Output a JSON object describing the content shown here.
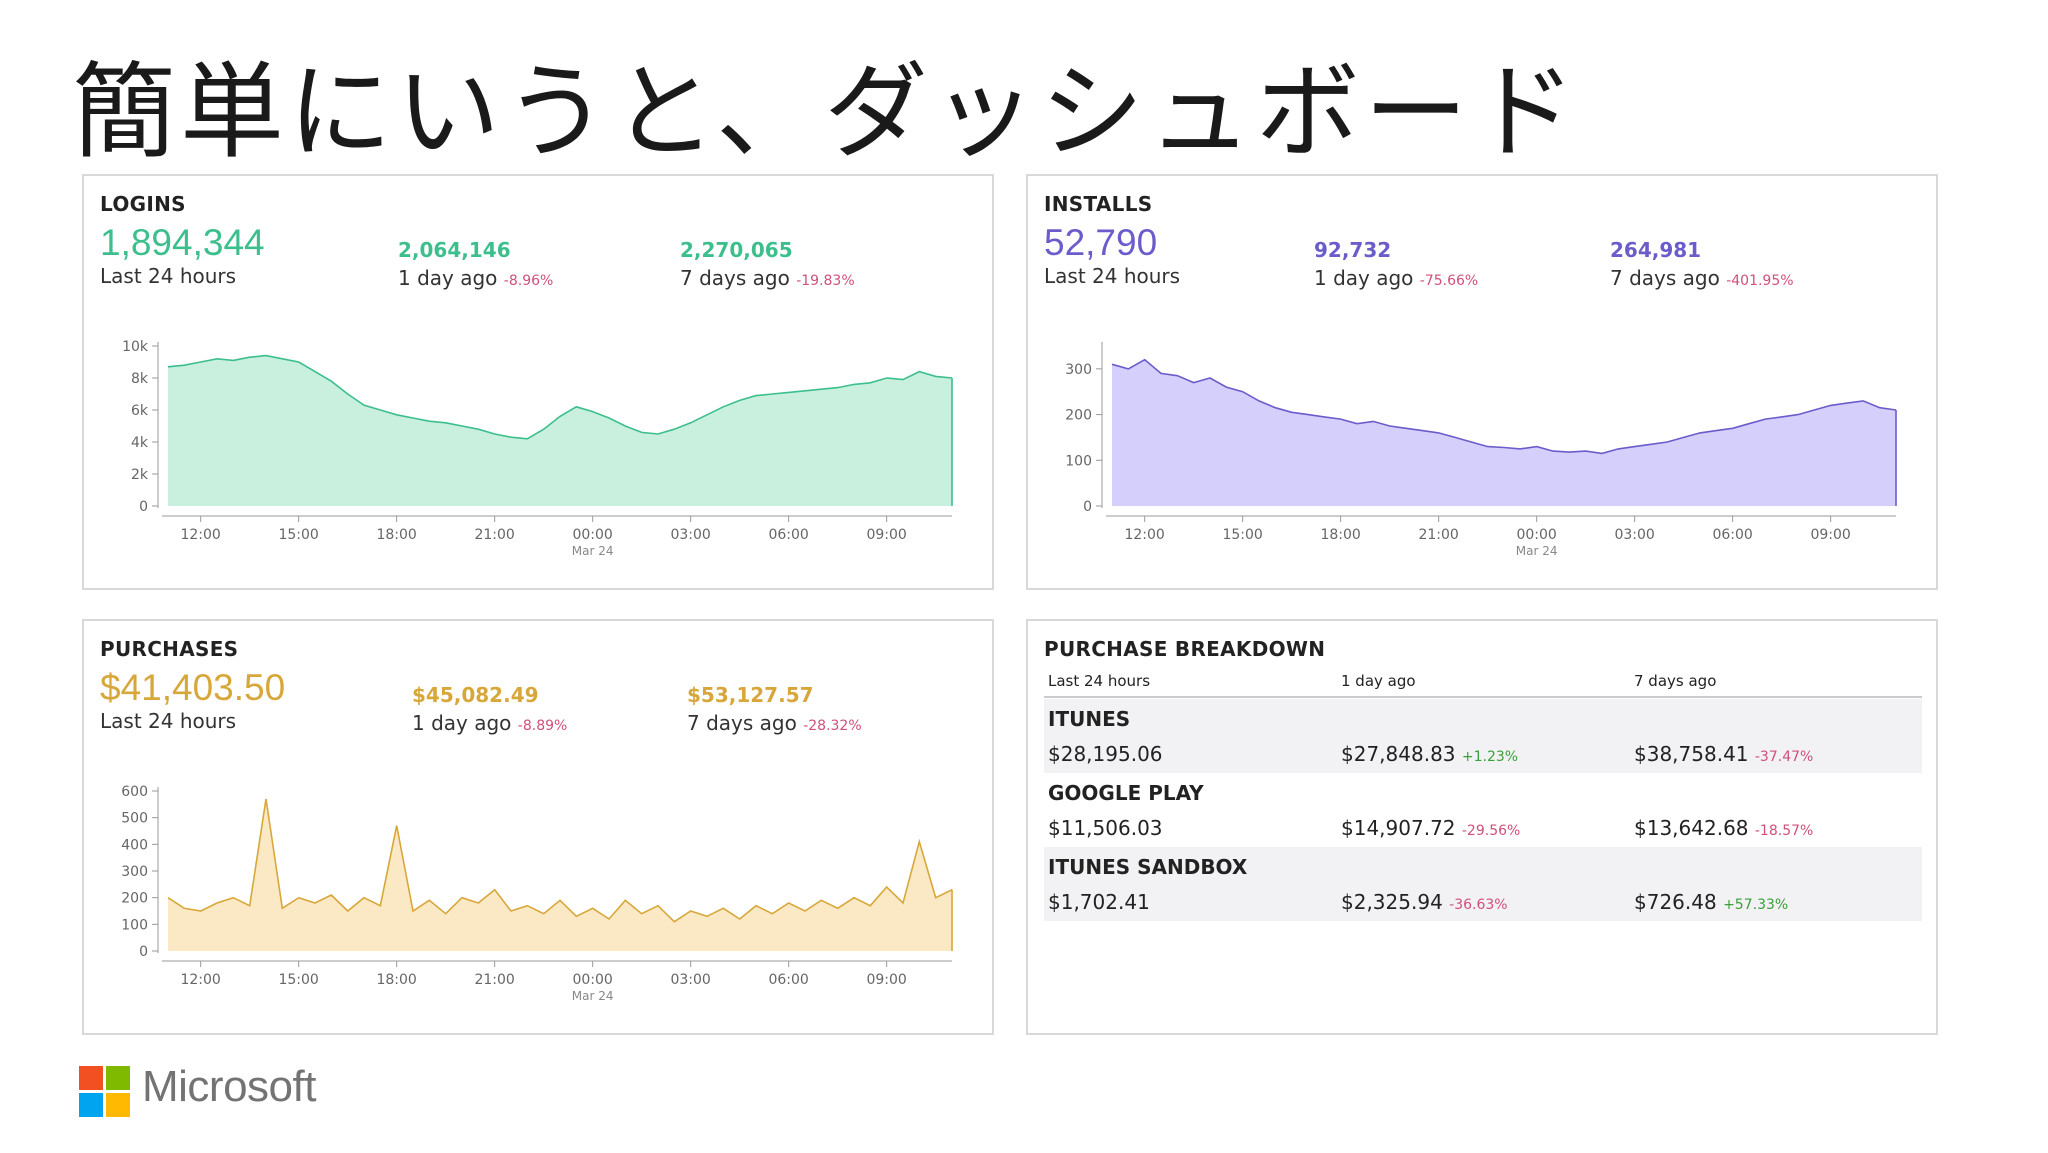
{
  "slide": {
    "title": "簡単にいうと、ダッシュボード"
  },
  "colors": {
    "logins": "#3cbf8c",
    "installs": "#6a5ccb",
    "purchases": "#d8a73a",
    "negative": "#d0507a",
    "positive": "#3aa03a"
  },
  "logins": {
    "title": "LOGINS",
    "value": "1,894,344",
    "value_label": "Last 24 hours",
    "day": {
      "value": "2,064,146",
      "label": "1 day ago",
      "delta": "-8.96%"
    },
    "week": {
      "value": "2,270,065",
      "label": "7 days ago",
      "delta": "-19.83%"
    }
  },
  "installs": {
    "title": "INSTALLS",
    "value": "52,790",
    "value_label": "Last 24 hours",
    "day": {
      "value": "92,732",
      "label": "1 day ago",
      "delta": "-75.66%"
    },
    "week": {
      "value": "264,981",
      "label": "7 days ago",
      "delta": "-401.95%"
    }
  },
  "purchases": {
    "title": "PURCHASES",
    "value": "$41,403.50",
    "value_label": "Last 24 hours",
    "day": {
      "value": "$45,082.49",
      "label": "1 day ago",
      "delta": "-8.89%"
    },
    "week": {
      "value": "$53,127.57",
      "label": "7 days ago",
      "delta": "-28.32%"
    }
  },
  "breakdown": {
    "title": "PURCHASE BREAKDOWN",
    "headers": [
      "Last 24 hours",
      "1 day ago",
      "7 days ago"
    ],
    "rows": [
      {
        "name": "ITUNES",
        "last": "$28,195.06",
        "day": "$27,848.83",
        "day_delta": "+1.23%",
        "week": "$38,758.41",
        "week_delta": "-37.47%"
      },
      {
        "name": "GOOGLE PLAY",
        "last": "$11,506.03",
        "day": "$14,907.72",
        "day_delta": "-29.56%",
        "week": "$13,642.68",
        "week_delta": "-18.57%"
      },
      {
        "name": "ITUNES SANDBOX",
        "last": "$1,702.41",
        "day": "$2,325.94",
        "day_delta": "-36.63%",
        "week": "$726.48",
        "week_delta": "+57.33%"
      }
    ]
  },
  "footer": {
    "brand": "Microsoft"
  },
  "chart_data": [
    {
      "type": "area",
      "name": "logins",
      "x_tick_labels": [
        "12:00",
        "15:00",
        "18:00",
        "21:00",
        "00:00",
        "03:00",
        "06:00",
        "09:00"
      ],
      "x_sub_label": "Mar 24",
      "y_tick_labels": [
        "0",
        "2k",
        "4k",
        "6k",
        "8k",
        "10k"
      ],
      "ylim": [
        0,
        10000
      ],
      "x_hours": [
        11,
        11.5,
        12,
        12.5,
        13,
        13.5,
        14,
        14.5,
        15,
        15.5,
        16,
        16.5,
        17,
        17.5,
        18,
        18.5,
        19,
        19.5,
        20,
        20.5,
        21,
        21.5,
        22,
        22.5,
        23,
        23.5,
        24,
        24.5,
        25,
        25.5,
        26,
        26.5,
        27,
        27.5,
        28,
        28.5,
        29,
        29.5,
        30,
        30.5,
        31,
        31.5,
        32,
        32.5,
        33,
        33.5,
        34,
        34.5,
        35
      ],
      "values": [
        8700,
        8800,
        9000,
        9200,
        9100,
        9300,
        9400,
        9200,
        9000,
        8400,
        7800,
        7000,
        6300,
        6000,
        5700,
        5500,
        5300,
        5200,
        5000,
        4800,
        4500,
        4300,
        4200,
        4800,
        5600,
        6200,
        5900,
        5500,
        5000,
        4600,
        4500,
        4800,
        5200,
        5700,
        6200,
        6600,
        6900,
        7000,
        7100,
        7200,
        7300,
        7400,
        7600,
        7700,
        8000,
        7900,
        8400,
        8100,
        8000
      ]
    },
    {
      "type": "area",
      "name": "installs",
      "x_tick_labels": [
        "12:00",
        "15:00",
        "18:00",
        "21:00",
        "00:00",
        "03:00",
        "06:00",
        "09:00"
      ],
      "x_sub_label": "Mar 24",
      "y_tick_labels": [
        "0",
        "100",
        "200",
        "300"
      ],
      "ylim": [
        0,
        350
      ],
      "x_hours": [
        11,
        11.5,
        12,
        12.5,
        13,
        13.5,
        14,
        14.5,
        15,
        15.5,
        16,
        16.5,
        17,
        17.5,
        18,
        18.5,
        19,
        19.5,
        20,
        20.5,
        21,
        21.5,
        22,
        22.5,
        23,
        23.5,
        24,
        24.5,
        25,
        25.5,
        26,
        26.5,
        27,
        27.5,
        28,
        28.5,
        29,
        29.5,
        30,
        30.5,
        31,
        31.5,
        32,
        32.5,
        33,
        33.5,
        34,
        34.5,
        35
      ],
      "values": [
        310,
        300,
        320,
        290,
        285,
        270,
        280,
        260,
        250,
        230,
        215,
        205,
        200,
        195,
        190,
        180,
        185,
        175,
        170,
        165,
        160,
        150,
        140,
        130,
        128,
        125,
        130,
        120,
        118,
        120,
        115,
        125,
        130,
        135,
        140,
        150,
        160,
        165,
        170,
        180,
        190,
        195,
        200,
        210,
        220,
        225,
        230,
        215,
        210
      ]
    },
    {
      "type": "area",
      "name": "purchases",
      "x_tick_labels": [
        "12:00",
        "15:00",
        "18:00",
        "21:00",
        "00:00",
        "03:00",
        "06:00",
        "09:00"
      ],
      "x_sub_label": "Mar 24",
      "y_tick_labels": [
        "0",
        "100",
        "200",
        "300",
        "400",
        "500",
        "600"
      ],
      "ylim": [
        0,
        600
      ],
      "x_hours": [
        11,
        11.5,
        12,
        12.5,
        13,
        13.5,
        14,
        14.5,
        15,
        15.5,
        16,
        16.5,
        17,
        17.5,
        18,
        18.5,
        19,
        19.5,
        20,
        20.5,
        21,
        21.5,
        22,
        22.5,
        23,
        23.5,
        24,
        24.5,
        25,
        25.5,
        26,
        26.5,
        27,
        27.5,
        28,
        28.5,
        29,
        29.5,
        30,
        30.5,
        31,
        31.5,
        32,
        32.5,
        33,
        33.5,
        34,
        34.5,
        35
      ],
      "values": [
        200,
        160,
        150,
        180,
        200,
        170,
        570,
        160,
        200,
        180,
        210,
        150,
        200,
        170,
        470,
        150,
        190,
        140,
        200,
        180,
        230,
        150,
        170,
        140,
        190,
        130,
        160,
        120,
        190,
        140,
        170,
        110,
        150,
        130,
        160,
        120,
        170,
        140,
        180,
        150,
        190,
        160,
        200,
        170,
        240,
        180,
        410,
        200,
        230
      ]
    }
  ]
}
